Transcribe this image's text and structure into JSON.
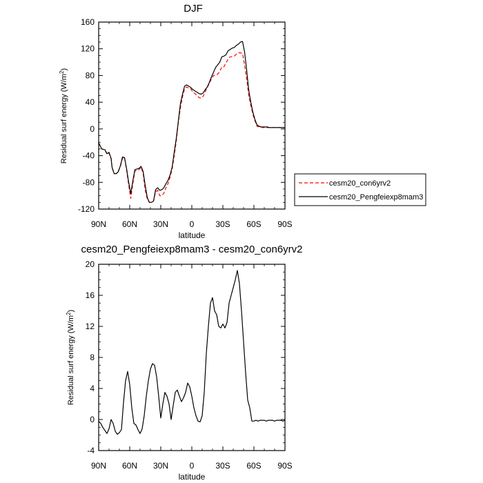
{
  "chart_data": [
    {
      "type": "line",
      "title": "DJF",
      "xlabel": "latitude",
      "ylabel": "Residual surf energy (W/m",
      "ylabel_sup": "2",
      "ylabel_close": ")",
      "xlim": [
        90,
        -90
      ],
      "ylim": [
        -120,
        160
      ],
      "x_ticks": [
        90,
        60,
        30,
        0,
        -30,
        -60,
        -90
      ],
      "x_tick_labels": [
        "90N",
        "60N",
        "30N",
        "0",
        "30S",
        "60S",
        "90S"
      ],
      "y_ticks": [
        -120,
        -80,
        -40,
        0,
        40,
        80,
        120,
        160
      ],
      "y_tick_labels": [
        "-120",
        "-80",
        "-40",
        "0",
        "40",
        "80",
        "120",
        "160"
      ],
      "legend_position": "right",
      "series": [
        {
          "name": "cesm20_con6yrv2",
          "color": "#ff0000",
          "dash": "dashed",
          "x": [
            90,
            87,
            84,
            82,
            80,
            78,
            77,
            75,
            73,
            71,
            69,
            67,
            65,
            63,
            61,
            59,
            57,
            55,
            53,
            51,
            49,
            47,
            45,
            43,
            41,
            39,
            37,
            35,
            33,
            31,
            29,
            27,
            25,
            23,
            21,
            19,
            17,
            15,
            13,
            11,
            9,
            7,
            5,
            3,
            1,
            -1,
            -3,
            -5,
            -7,
            -9,
            -11,
            -13,
            -15,
            -17,
            -19,
            -21,
            -23,
            -25,
            -27,
            -29,
            -31,
            -33,
            -35,
            -37,
            -39,
            -41,
            -43,
            -45,
            -47,
            -49,
            -51,
            -53,
            -55,
            -57,
            -59,
            -61,
            -63,
            -65,
            -67,
            -69,
            -71,
            -73,
            -75,
            -77,
            -79,
            -81,
            -84,
            -87,
            -90
          ],
          "y": [
            -21,
            -30,
            -31,
            -38,
            -36,
            -45,
            -58,
            -67,
            -67,
            -63,
            -56,
            -44,
            -43,
            -62,
            -84,
            -104,
            -82,
            -63,
            -62,
            -61,
            -57,
            -67,
            -92,
            -105,
            -110,
            -110,
            -108,
            -94,
            -92,
            -100,
            -100,
            -96,
            -88,
            -82,
            -72,
            -60,
            -40,
            -18,
            10,
            32,
            48,
            60,
            63,
            61,
            60,
            55,
            53,
            50,
            47,
            46,
            49,
            56,
            62,
            69,
            75,
            80,
            81,
            82,
            86,
            93,
            93,
            99,
            104,
            108,
            108,
            109,
            112,
            114,
            114,
            113,
            95,
            75,
            50,
            35,
            22,
            12,
            4,
            3,
            3,
            2,
            2,
            2,
            2,
            2,
            2,
            2,
            2,
            2,
            2
          ]
        },
        {
          "name": "cesm20_Pengfeiexp8mam3",
          "color": "#000000",
          "dash": "solid",
          "x": [
            90,
            87,
            84,
            82,
            80,
            78,
            77,
            75,
            73,
            71,
            69,
            67,
            65,
            63,
            61,
            59,
            57,
            55,
            53,
            51,
            49,
            47,
            45,
            43,
            41,
            39,
            37,
            35,
            33,
            31,
            29,
            27,
            25,
            23,
            21,
            19,
            17,
            15,
            13,
            11,
            9,
            7,
            5,
            3,
            1,
            -1,
            -3,
            -5,
            -7,
            -9,
            -11,
            -13,
            -15,
            -17,
            -19,
            -21,
            -23,
            -25,
            -27,
            -29,
            -31,
            -33,
            -35,
            -37,
            -39,
            -41,
            -43,
            -45,
            -47,
            -49,
            -51,
            -53,
            -55,
            -57,
            -59,
            -61,
            -63,
            -65,
            -67,
            -69,
            -71,
            -73,
            -75,
            -77,
            -79,
            -81,
            -84,
            -87,
            -90
          ],
          "y": [
            -21,
            -30,
            -31,
            -37,
            -35,
            -44,
            -58,
            -67,
            -67,
            -64,
            -55,
            -42,
            -43,
            -60,
            -80,
            -97,
            -78,
            -61,
            -60,
            -59,
            -56,
            -64,
            -85,
            -103,
            -110,
            -110,
            -108,
            -91,
            -88,
            -92,
            -91,
            -88,
            -82,
            -77,
            -69,
            -57,
            -35,
            -14,
            12,
            38,
            52,
            64,
            66,
            64,
            62,
            59,
            57,
            55,
            53,
            52,
            54,
            59,
            63,
            70,
            78,
            85,
            92,
            96,
            100,
            108,
            109,
            111,
            117,
            119,
            121,
            122,
            125,
            127,
            130,
            131,
            115,
            88,
            58,
            40,
            25,
            14,
            6,
            4,
            3,
            3,
            3,
            3,
            2,
            2,
            2,
            2,
            2,
            2,
            2
          ]
        }
      ]
    },
    {
      "type": "line",
      "title": "cesm20_Pengfeiexp8mam3 - cesm20_con6yrv2",
      "xlabel": "latitude",
      "ylabel": "Residual surf energy (W/m",
      "ylabel_sup": "2",
      "ylabel_close": ")",
      "xlim": [
        90,
        -90
      ],
      "ylim": [
        -4,
        20
      ],
      "x_ticks": [
        90,
        60,
        30,
        0,
        -30,
        -60,
        -90
      ],
      "x_tick_labels": [
        "90N",
        "60N",
        "30N",
        "0",
        "30S",
        "60S",
        "90S"
      ],
      "y_ticks": [
        -4,
        0,
        4,
        8,
        12,
        16,
        20
      ],
      "y_tick_labels": [
        "-4",
        "0",
        "4",
        "8",
        "12",
        "16",
        "20"
      ],
      "series": [
        {
          "color": "#000000",
          "dash": "solid",
          "x": [
            90,
            88,
            86,
            84,
            82,
            80,
            78,
            76,
            74,
            72,
            70,
            68,
            66,
            64,
            62,
            60,
            58,
            56,
            54,
            52,
            50,
            48,
            46,
            44,
            42,
            40,
            38,
            36,
            34,
            32,
            30,
            28,
            26,
            24,
            22,
            20,
            18,
            16,
            14,
            12,
            10,
            8,
            6,
            4,
            2,
            0,
            -2,
            -4,
            -6,
            -8,
            -10,
            -12,
            -14,
            -16,
            -18,
            -20,
            -22,
            -24,
            -26,
            -28,
            -30,
            -32,
            -34,
            -36,
            -38,
            -40,
            -42,
            -44,
            -46,
            -48,
            -50,
            -52,
            -54,
            -56,
            -58,
            -60,
            -62,
            -64,
            -66,
            -68,
            -70,
            -72,
            -74,
            -76,
            -78,
            -80,
            -82,
            -84,
            -86,
            -88,
            -90
          ],
          "y": [
            -0.2,
            -0.5,
            -1.0,
            -1.4,
            -1.8,
            -1.2,
            0.0,
            -0.5,
            -1.5,
            -1.9,
            -1.7,
            -1.3,
            2.2,
            5.0,
            6.2,
            4.5,
            1.5,
            -0.5,
            -0.7,
            -1.3,
            -1.8,
            -1.2,
            0.5,
            3.0,
            5.0,
            6.5,
            7.2,
            7.0,
            5.5,
            3.0,
            0.2,
            2.0,
            3.5,
            3.0,
            2.0,
            0.0,
            1.8,
            3.5,
            3.8,
            3.0,
            2.3,
            2.8,
            3.5,
            4.7,
            4.2,
            3.0,
            1.5,
            0.5,
            -0.2,
            -0.3,
            0.5,
            3.5,
            8.5,
            12.0,
            15.0,
            15.7,
            14.0,
            13.5,
            12.0,
            11.8,
            12.3,
            11.8,
            12.5,
            15.0,
            16.0,
            17.0,
            18.0,
            19.2,
            17.5,
            14.0,
            10.0,
            6.0,
            2.5,
            1.5,
            -0.2,
            -0.2,
            -0.1,
            -0.2,
            -0.1,
            -0.1,
            -0.1,
            -0.2,
            -0.1,
            -0.1,
            -0.1,
            -0.2,
            -0.1,
            -0.1,
            -0.1,
            -0.2,
            -0.1
          ]
        }
      ]
    }
  ]
}
